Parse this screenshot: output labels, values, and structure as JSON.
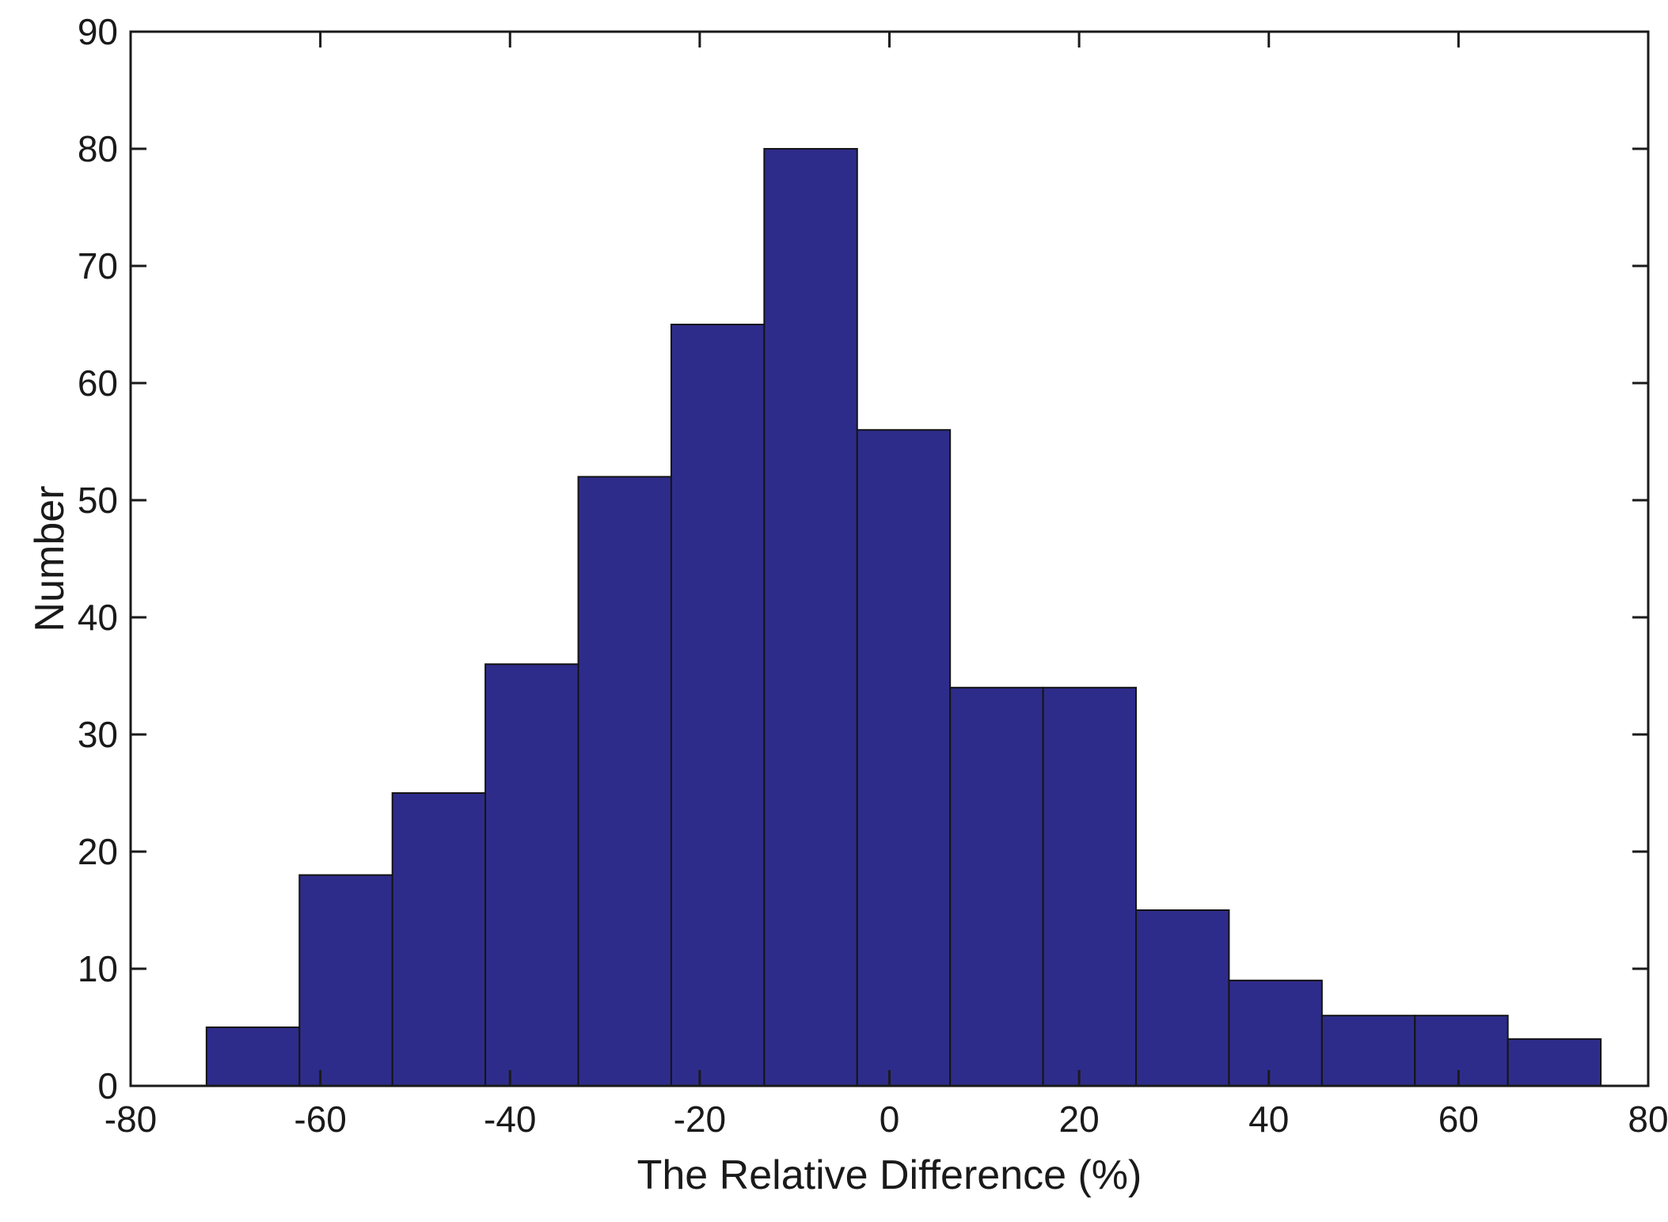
{
  "chart_data": {
    "type": "bar",
    "subtype": "histogram",
    "title": "",
    "xlabel": "The Relative Difference (%)",
    "ylabel": "Number",
    "xlim": [
      -80,
      80
    ],
    "ylim": [
      0,
      90
    ],
    "x_ticks": [
      -80,
      -60,
      -40,
      -20,
      0,
      20,
      40,
      60,
      80
    ],
    "y_ticks": [
      0,
      10,
      20,
      30,
      40,
      50,
      60,
      70,
      80,
      90
    ],
    "bin_edges": [
      -72,
      -62.2,
      -52.4,
      -42.6,
      -32.8,
      -23,
      -13.2,
      -3.4,
      6.4,
      16.2,
      26,
      35.8,
      45.6,
      55.4,
      65.2,
      75
    ],
    "counts": [
      5,
      18,
      25,
      36,
      52,
      65,
      80,
      56,
      34,
      34,
      15,
      9,
      6,
      6,
      4
    ],
    "bar_color": "#2E2C8A",
    "bar_edge_color": "#141414",
    "axis_color": "#1a1a1a",
    "grid": false,
    "legend": null
  }
}
